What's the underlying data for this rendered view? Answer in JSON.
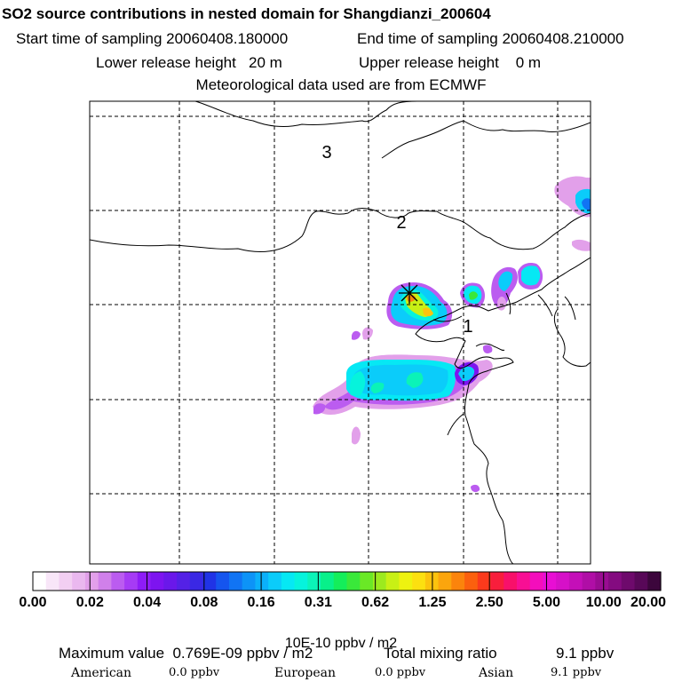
{
  "header": {
    "title": "SO2 source contributions in nested domain for Shangdianzi_200604",
    "start_label": "Start time of sampling 20060408.180000",
    "end_label": "End time of sampling 20060408.210000",
    "lower_label": "Lower release height   20 m",
    "upper_label": "Upper release height    0 m",
    "met_label": "Meteorological data used are from ECMWF"
  },
  "map": {
    "region_labels": [
      "3",
      "2",
      "1"
    ],
    "site_marker": "asterisk-star"
  },
  "colorbar": {
    "tick_labels": [
      "0.00",
      "0.02",
      "0.04",
      "0.08",
      "0.16",
      "0.31",
      "0.62",
      "1.25",
      "2.50",
      "5.00",
      "10.00",
      "20.00"
    ],
    "units": "10E-10 ppbv / m2",
    "colors": [
      "#ffffff",
      "#f8e6f8",
      "#f2cff2",
      "#eab8ef",
      "#e2a0ea",
      "#d080ea",
      "#bb5cf0",
      "#a63bf5",
      "#8e1cf7",
      "#7d14f0",
      "#6a18ea",
      "#5421e6",
      "#3a28e4",
      "#2033e6",
      "#1555ee",
      "#1174f4",
      "#0d93f7",
      "#0bb0fa",
      "#0bccfa",
      "#06e8f4",
      "#06f3dc",
      "#0bf3b8",
      "#08f08a",
      "#14ee5a",
      "#3ae83a",
      "#6ae826",
      "#9cea1e",
      "#c8f015",
      "#eef210",
      "#fce010",
      "#fcc30d",
      "#fba50d",
      "#fb840c",
      "#fb600e",
      "#fb3a1c",
      "#f81e3c",
      "#f8106a",
      "#f80f94",
      "#f40ebc",
      "#e80ed4",
      "#d610c8",
      "#c40fb8",
      "#b00ea6",
      "#9a0c92",
      "#840b80",
      "#6e0a6c",
      "#580858",
      "#3c063c"
    ]
  },
  "summary": {
    "max_value": "Maximum value  0.769E-09 ppbv / m2",
    "total_label": "Total mixing ratio",
    "total_value": "9.1 ppbv",
    "regions": [
      {
        "name": "American",
        "value": "0.0 ppbv"
      },
      {
        "name": "European",
        "value": "0.0 ppbv"
      },
      {
        "name": "Asian",
        "value": "9.1 ppbv"
      }
    ]
  },
  "chart_data": {
    "type": "heatmap",
    "title": "SO2 source contributions in nested domain for Shangdianzi_200604",
    "colorbar_levels": [
      0.0,
      0.02,
      0.04,
      0.08,
      0.16,
      0.31,
      0.62,
      1.25,
      2.5,
      5.0,
      10.0,
      20.0
    ],
    "units": "10E-10 ppbv / m2",
    "max_value": "0.769E-09 ppbv / m2",
    "total_mixing_ratio_ppbv": 9.1,
    "contributions_ppbv": {
      "American": 0.0,
      "European": 0.0,
      "Asian": 9.1
    },
    "grid": true
  }
}
